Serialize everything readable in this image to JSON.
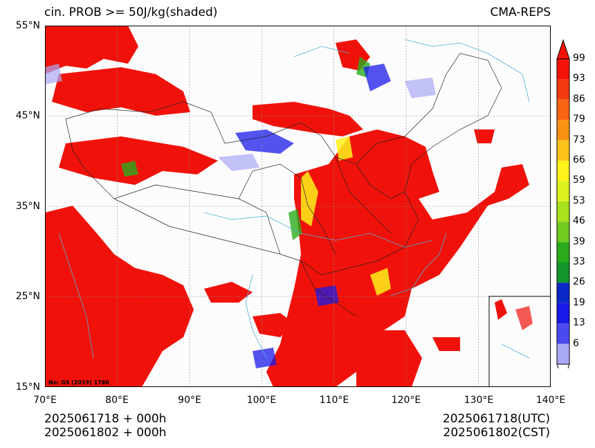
{
  "title_left": "cin. PROB >= 50J/kg(shaded)",
  "title_right": "CMA-REPS",
  "lat_labels": [
    "55°N",
    "45°N",
    "35°N",
    "25°N",
    "15°N"
  ],
  "lon_labels": [
    "70°E",
    "80°E",
    "90°E",
    "100°E",
    "110°E",
    "120°E",
    "130°E",
    "140°E"
  ],
  "map_note": "No: GS (2019) 1786",
  "footer_left_1": "2025061718  +  000h",
  "footer_left_2": "2025061802  +  000h",
  "footer_right_1": "2025061718(UTC)",
  "footer_right_2": "2025061802(CST)",
  "colorbar": {
    "labels": [
      "99",
      "93",
      "86",
      "79",
      "73",
      "66",
      "59",
      "53",
      "46",
      "39",
      "33",
      "26",
      "19",
      "13",
      "6"
    ],
    "colors": [
      "#f5120a",
      "#f33a0e",
      "#f76512",
      "#f99214",
      "#fcc41b",
      "#fff21b",
      "#dff020",
      "#a9e21c",
      "#73cb1f",
      "#2aab1b",
      "#12962c",
      "#0a28c8",
      "#1a1ae8",
      "#4a4af0",
      "#a8a8f5"
    ]
  },
  "colors": {
    "shade_high": "#f0120a",
    "shade_mid": "#fff21b",
    "shade_low": "#1a1ae8",
    "rivers": "#4ab0d8",
    "borders": "#222222"
  }
}
